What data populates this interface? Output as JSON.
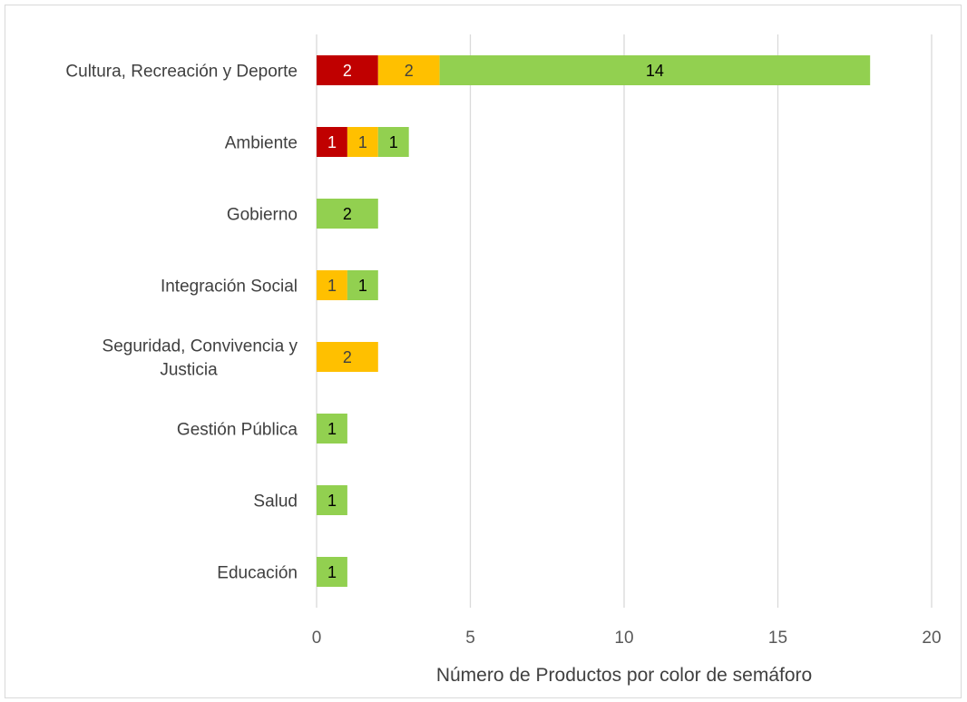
{
  "chart_data": {
    "type": "bar",
    "orientation": "horizontal",
    "stacked": true,
    "categories": [
      "Cultura, Recreación y Deporte",
      "Ambiente",
      "Gobierno",
      "Integración Social",
      "Seguridad, Convivencia y Justicia",
      "Gestión Pública",
      "Salud",
      "Educación"
    ],
    "category_label_lines": [
      [
        "Cultura, Recreación y Deporte"
      ],
      [
        "Ambiente"
      ],
      [
        "Gobierno"
      ],
      [
        "Integración Social"
      ],
      [
        "Seguridad, Convivencia y",
        "Justicia"
      ],
      [
        "Gestión Pública"
      ],
      [
        "Salud"
      ],
      [
        "Educación"
      ]
    ],
    "series": [
      {
        "color": "#c00000",
        "label_color": "#ffffff",
        "values": [
          2,
          1,
          0,
          0,
          0,
          0,
          0,
          0
        ]
      },
      {
        "color": "#ffc000",
        "label_color": "#404040",
        "values": [
          2,
          1,
          0,
          1,
          2,
          0,
          0,
          0
        ]
      },
      {
        "color": "#92d050",
        "label_color": "#000000",
        "values": [
          14,
          1,
          2,
          1,
          0,
          1,
          1,
          1
        ]
      }
    ],
    "xlabel": "Número de Productos por color de semáforo",
    "ylabel": "",
    "xlim": [
      0,
      20
    ],
    "xticks": [
      0,
      5,
      10,
      15,
      20
    ],
    "gridlines": "vertical",
    "legend": "none"
  }
}
